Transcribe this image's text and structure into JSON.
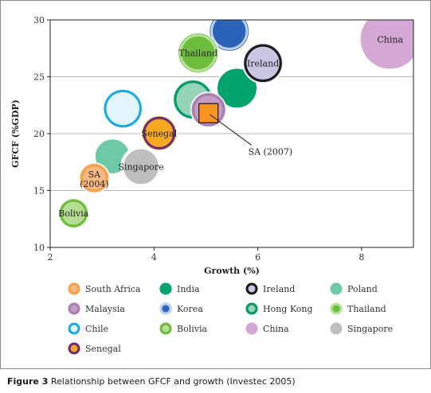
{
  "caption": {
    "figure_label": "Figure 3",
    "text": "Relationship between GFCF and growth (Investec 2005)"
  },
  "chart_data": {
    "type": "scatter",
    "variant": "bubble",
    "xlabel": "Growth (%)",
    "ylabel": "GFCF (%GDP)",
    "xlim": [
      2,
      9
    ],
    "ylim": [
      10,
      30
    ],
    "xticks": [
      2,
      4,
      6,
      8
    ],
    "yticks": [
      10,
      15,
      20,
      25,
      30
    ],
    "grid": "horizontal",
    "legend_position": "bottom",
    "series": [
      {
        "name": "South Africa",
        "fill": "#f9b984",
        "ring": "#f4a14a",
        "ring_white": false,
        "points": [
          {
            "x": 2.85,
            "y": 16.1,
            "r": 3,
            "label": "SA (2004)"
          }
        ]
      },
      {
        "name": "India",
        "fill": "#00a36c",
        "ring": "#00a36c",
        "ring_white": false,
        "points": [
          {
            "x": 5.6,
            "y": 24.0,
            "r": 4
          }
        ]
      },
      {
        "name": "Ireland",
        "fill": "#c9c5e2",
        "ring": "#1a1a1a",
        "ring_white": false,
        "points": [
          {
            "x": 6.1,
            "y": 26.2,
            "r": 4,
            "label": "Ireland"
          }
        ]
      },
      {
        "name": "Poland",
        "fill": "#6dc9a6",
        "ring": "#6dc9a6",
        "ring_white": false,
        "points": [
          {
            "x": 3.2,
            "y": 18.0,
            "r": 3.5
          }
        ]
      },
      {
        "name": "Malaysia",
        "fill": "#c49cc6",
        "ring": "#a97fb0",
        "ring_white": false,
        "points": [
          {
            "x": 5.05,
            "y": 22.1,
            "r": 3.5
          }
        ]
      },
      {
        "name": "Korea",
        "fill": "#2b63b8",
        "ring": "#bfd0ee",
        "ring_white": false,
        "points": [
          {
            "x": 5.45,
            "y": 29.0,
            "r": 4
          }
        ]
      },
      {
        "name": "Hong Kong",
        "fill": "#95d4b9",
        "ring": "#009b63",
        "ring_white": false,
        "points": [
          {
            "x": 4.75,
            "y": 23.0,
            "r": 4
          }
        ]
      },
      {
        "name": "Thailand",
        "fill": "#6cbc3d",
        "ring": "#b6e39a",
        "ring_white": false,
        "points": [
          {
            "x": 4.85,
            "y": 27.1,
            "r": 4,
            "label": "Thailand"
          }
        ]
      },
      {
        "name": "Chile",
        "fill": "#e1f3fb",
        "ring": "#1ba9e0",
        "ring_white": false,
        "points": [
          {
            "x": 3.4,
            "y": 22.2,
            "r": 4
          }
        ]
      },
      {
        "name": "Bolivia",
        "fill": "#b6de92",
        "ring": "#6cbc3d",
        "ring_white": false,
        "points": [
          {
            "x": 2.45,
            "y": 13.0,
            "r": 3,
            "label": "Bolivia"
          }
        ]
      },
      {
        "name": "China",
        "fill": "#d4a7d4",
        "ring": "#d4a7d4",
        "ring_white": false,
        "points": [
          {
            "x": 8.55,
            "y": 28.3,
            "r": 6,
            "label": "China"
          }
        ]
      },
      {
        "name": "Singapore",
        "fill": "#bfbfbf",
        "ring": "#ffffff",
        "ring_white": true,
        "points": [
          {
            "x": 3.75,
            "y": 17.1,
            "r": 3.8,
            "label": "Singapore"
          }
        ]
      },
      {
        "name": "Senegal",
        "fill": "#f7a823",
        "ring": "#6b2d79",
        "ring_white": false,
        "points": [
          {
            "x": 4.1,
            "y": 20.05,
            "r": 3.5,
            "label": "Senegal"
          }
        ]
      }
    ],
    "highlight": {
      "label": "SA (2007)",
      "x": 5.05,
      "y": 21.8,
      "fill": "#f7941d",
      "label_x": 6.0,
      "label_y": 18.3
    },
    "legend_order": [
      "South Africa",
      "India",
      "Ireland",
      "Poland",
      "Malaysia",
      "Korea",
      "Hong Kong",
      "Thailand",
      "Chile",
      "Bolivia",
      "China",
      "Singapore",
      "Senegal"
    ]
  }
}
